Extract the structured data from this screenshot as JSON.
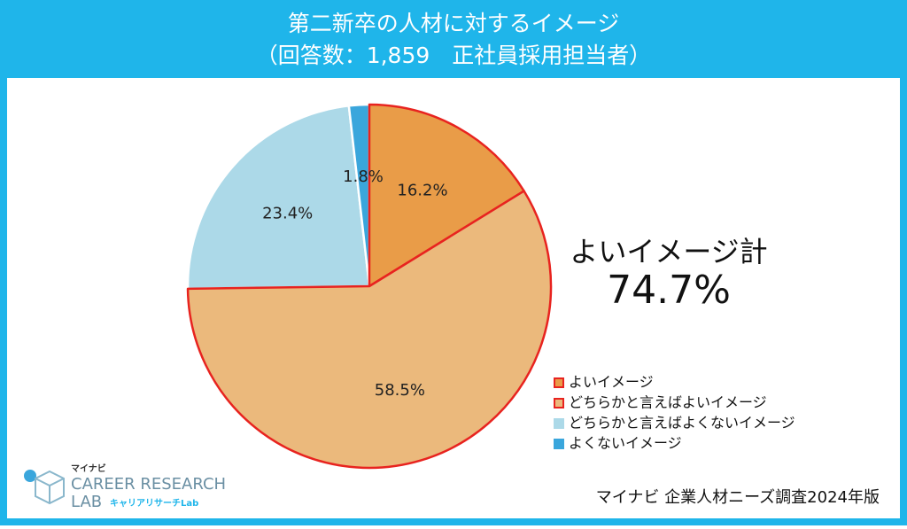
{
  "chart_data": {
    "type": "pie",
    "title": "第二新卒の人材に対するイメージ",
    "subtitle": "（回答数：1,859　正社員採用担当者）",
    "categories": [
      "よいイメージ",
      "どちらかと言えばよいイメージ",
      "どちらかと言えばよくないイメージ",
      "よくないイメージ"
    ],
    "values": [
      16.2,
      58.5,
      23.4,
      1.8
    ],
    "value_labels": [
      "16.2%",
      "58.5%",
      "23.4%",
      "1.8%"
    ],
    "colors": [
      "#e99c48",
      "#ebb97c",
      "#acd9e8",
      "#3aa6dc"
    ],
    "edgecolors": [
      "#e8231f",
      "#e8231f",
      "#ffffff",
      "#ffffff"
    ],
    "start_angle": 0,
    "direction": "clockwise",
    "legend": "lower right",
    "annotation": {
      "label": "よいイメージ計",
      "value": "74.7%"
    },
    "source": "マイナビ 企業人材ニーズ調査2024年版"
  },
  "logo": {
    "brand": "マイナビ",
    "name_line1": "CAREER RESEARCH",
    "name_line2": "LAB",
    "sub": "キャリアリサーチLab"
  }
}
